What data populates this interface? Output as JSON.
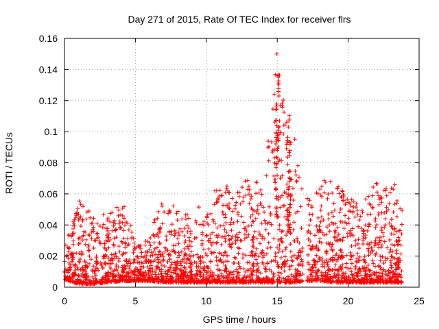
{
  "chart_data": {
    "type": "scatter",
    "title": "Day 271 of 2015, Rate Of TEC Index for receiver flrs",
    "xlabel": "GPS time / hours",
    "ylabel": "ROTI / TECUs",
    "xlim": [
      0,
      25
    ],
    "ylim": [
      0,
      0.16
    ],
    "x_ticks": [
      0,
      5,
      10,
      15,
      20,
      25
    ],
    "x_tick_labels": [
      "0",
      "5",
      "10",
      "15",
      "20",
      "25"
    ],
    "y_ticks": [
      0,
      0.02,
      0.04,
      0.06,
      0.08,
      0.1,
      0.12,
      0.14,
      0.16
    ],
    "y_tick_labels": [
      "0",
      "0.02",
      "0.04",
      "0.06",
      "0.08",
      "0.1",
      "0.12",
      "0.14",
      "0.16"
    ],
    "grid": true,
    "marker": "+",
    "marker_color": "#ff0000",
    "series": [
      {
        "name": "ROTI",
        "envelope_hourly": {
          "x": [
            0,
            1,
            2,
            3,
            4,
            5,
            6,
            7,
            8,
            9,
            10,
            11,
            12,
            13,
            14,
            15,
            16,
            17,
            18,
            19,
            20,
            21,
            22,
            23,
            23.8
          ],
          "max": [
            0.025,
            0.056,
            0.052,
            0.045,
            0.057,
            0.032,
            0.034,
            0.061,
            0.05,
            0.048,
            0.058,
            0.068,
            0.062,
            0.073,
            0.064,
            0.15,
            0.107,
            0.059,
            0.068,
            0.07,
            0.058,
            0.052,
            0.075,
            0.066,
            0.066
          ],
          "min": [
            0.005,
            0.002,
            0.002,
            0.003,
            0.004,
            0.004,
            0.004,
            0.003,
            0.003,
            0.003,
            0.003,
            0.003,
            0.003,
            0.003,
            0.003,
            0.003,
            0.003,
            0.004,
            0.004,
            0.003,
            0.003,
            0.003,
            0.003,
            0.003,
            0.003
          ]
        },
        "features": [
          {
            "x_range": [
              14.85,
              15.1
            ],
            "y_range": [
              0.045,
              0.15
            ],
            "label": "peak near 15 h"
          },
          {
            "x_range": [
              15.7,
              15.95
            ],
            "y_range": [
              0.035,
              0.107
            ],
            "label": "secondary peak near 15.8 h"
          },
          {
            "x_range": [
              16.8,
              17.1
            ],
            "y_range": [
              0,
              0.003
            ],
            "label": "data gap"
          }
        ]
      }
    ]
  }
}
